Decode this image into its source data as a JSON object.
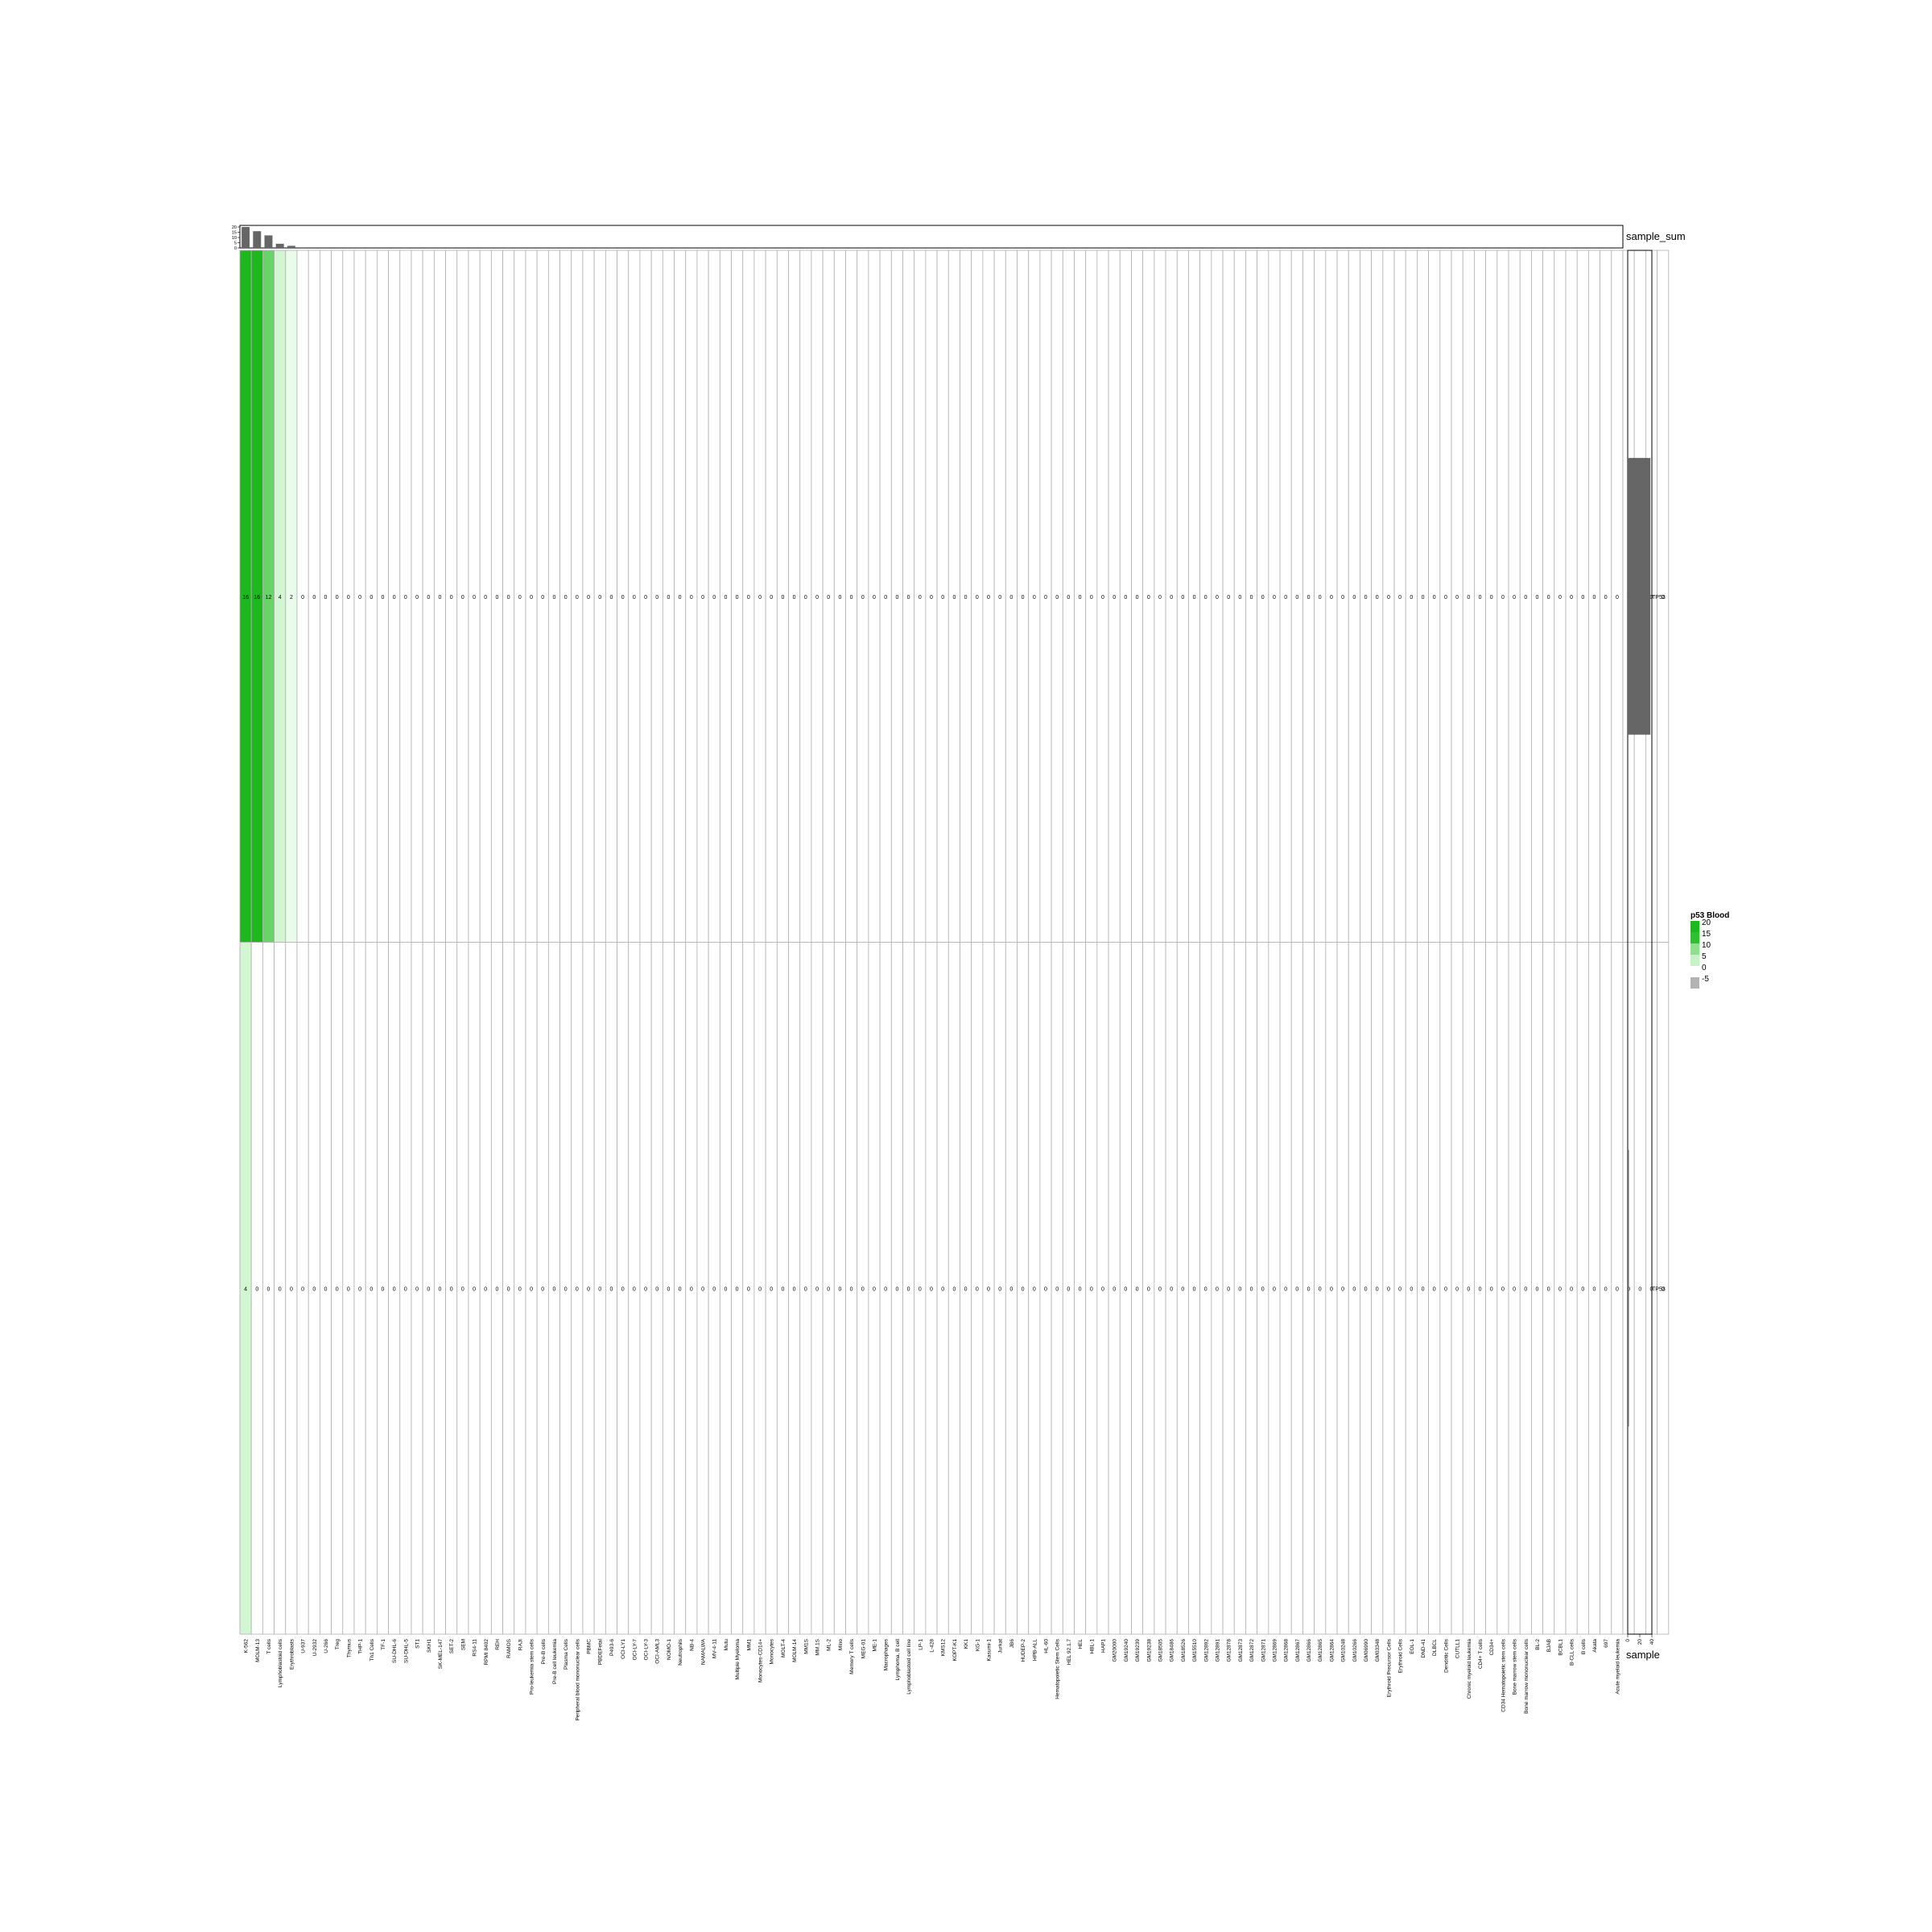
{
  "chart_data": {
    "type": "heatmap",
    "title": "",
    "legend": {
      "title": "p53 Blood",
      "ticks": [
        "20",
        "15",
        "10",
        "5",
        "0",
        "-5"
      ],
      "placement": "right"
    },
    "top_annotation": {
      "label": "sample_sum",
      "yticks": [
        "20",
        "15",
        "10",
        "5",
        "0"
      ]
    },
    "right_annotation": {
      "label": "sample",
      "ticks": [
        "0",
        "20",
        "40"
      ],
      "values": [
        37.6,
        1
      ]
    },
    "row_labels": [
      "TP53",
      "TP53"
    ],
    "colors": {
      "high": "#1db81d",
      "mid": "#8ee08e",
      "low": "#f4fff4",
      "zero": "#ffffff",
      "neg": "#b3b3b3",
      "bar": "#666666"
    },
    "columns": [
      "K-562",
      "MOLM-13",
      "T cells",
      "Lymphoblastoid cells",
      "Erythroblasts",
      "U-937",
      "U-2932",
      "U-266",
      "Treg",
      "Thymus",
      "THP-1",
      "Th1 Cells",
      "TF-1",
      "SU-DHL-6",
      "SU-DHL-5",
      "ST1",
      "SKH1",
      "SK-MEL-147",
      "SET-2",
      "SEM",
      "RS4-11",
      "RPMI 8402",
      "REH",
      "RAMOS",
      "RAJI",
      "Pro-leukemia stem cells",
      "Pre-B cells",
      "Pre-B cell leukemia",
      "Plasma Cells",
      "Peripheral blood mononuclear cells",
      "PBMC",
      "PBDEFetal",
      "P493-6",
      "OCI-LY1",
      "OCI-LY-7",
      "OCI-LY-3",
      "OCI-AML3",
      "NOMO-1",
      "Neutrophils",
      "NB-4",
      "NAMALWA",
      "MV-4-11",
      "Mutu",
      "Multiple Myeloma",
      "MM1",
      "Monocytes-CD14+",
      "Monocytes",
      "MOLT-4",
      "MOLM-14",
      "MM1S",
      "MM.1S",
      "ML-2",
      "Mino",
      "Memory T cells",
      "MEG-01",
      "ME-1",
      "Macrophages",
      "Lymphoma, B cell",
      "Lymphoblastoid cell line",
      "LP-1",
      "L-428",
      "KMS12",
      "KOPT-K1",
      "KK1",
      "KG-1",
      "Kasumi-1",
      "Jurkat",
      "JB6",
      "HUDEP-2",
      "HPB-ALL",
      "HL-60",
      "Hematopoietic Stem Cells",
      "HEL 92.1.7",
      "HEL",
      "HBL-1",
      "HAP1",
      "GM20000",
      "GM19240",
      "GM19239",
      "GM19238",
      "GM18505",
      "GM18486",
      "GM18526",
      "GM15510",
      "GM12892",
      "GM12891",
      "GM12878",
      "GM12873",
      "GM12872",
      "GM12871",
      "GM12869",
      "GM12868",
      "GM12867",
      "GM12866",
      "GM12865",
      "GM12864",
      "GM10248",
      "GM10266",
      "GM06990",
      "GM03348",
      "Erythroid Precursor Cells",
      "Erythroid Cells",
      "EOL-1",
      "DND-41",
      "DLBCL",
      "Dendritic Cells",
      "CUTLL1",
      "Chronic myeloid leukemia",
      "CD4+ T cells",
      "CD34+",
      "CD34 Hematopoietic stem cells",
      "Bone marrow stem cells",
      "Bone marrow mononuclear cells",
      "BL-2",
      "BJAB",
      "BCBL1",
      "B-CLL cells",
      "B cells",
      "Akata",
      "697",
      "Acute myeloid leukemia"
    ],
    "rows": [
      {
        "name": "TP53",
        "values": [
          16,
          16,
          12,
          4,
          2,
          0,
          0,
          0,
          0,
          0,
          0,
          0,
          0,
          0,
          0,
          0,
          0,
          0,
          0,
          0,
          0,
          0,
          0,
          0,
          0,
          0,
          0,
          0,
          0,
          0,
          0,
          0,
          0,
          0,
          0,
          0,
          0,
          0,
          0,
          0,
          0,
          0,
          0,
          0,
          0,
          0,
          0,
          0,
          0,
          0,
          0,
          0,
          0,
          0,
          0,
          0,
          0,
          0,
          0,
          0,
          0,
          0,
          0,
          0,
          0,
          0,
          0,
          0,
          0,
          0,
          0,
          0,
          0,
          0,
          0,
          0,
          0,
          0,
          0,
          0,
          0,
          0,
          0,
          0,
          0,
          0,
          0,
          0,
          0,
          0,
          0,
          0,
          0,
          0,
          0,
          0,
          0,
          0,
          0,
          0,
          0,
          0,
          0,
          0,
          0,
          0,
          0,
          0,
          0,
          0,
          0,
          0,
          0,
          0,
          0,
          0,
          0,
          0,
          0,
          0,
          0,
          0,
          0,
          0,
          0
        ]
      },
      {
        "name": "TP53",
        "values": [
          4,
          0,
          0,
          0,
          0,
          0,
          0,
          0,
          0,
          0,
          0,
          0,
          0,
          0,
          0,
          0,
          0,
          0,
          0,
          0,
          0,
          0,
          0,
          0,
          0,
          0,
          0,
          0,
          0,
          0,
          0,
          0,
          0,
          0,
          0,
          0,
          0,
          0,
          0,
          0,
          0,
          0,
          0,
          0,
          0,
          0,
          0,
          0,
          0,
          0,
          0,
          0,
          0,
          0,
          0,
          0,
          0,
          0,
          0,
          0,
          0,
          0,
          0,
          0,
          0,
          0,
          0,
          0,
          0,
          0,
          0,
          0,
          0,
          0,
          0,
          0,
          0,
          0,
          0,
          0,
          0,
          0,
          0,
          0,
          0,
          0,
          0,
          0,
          0,
          0,
          0,
          0,
          0,
          0,
          0,
          0,
          0,
          0,
          0,
          0,
          0,
          0,
          0,
          0,
          0,
          0,
          0,
          0,
          0,
          0,
          0,
          0,
          0,
          0,
          0,
          0,
          0,
          0,
          0,
          0,
          0,
          0,
          0,
          0,
          0
        ]
      }
    ]
  }
}
